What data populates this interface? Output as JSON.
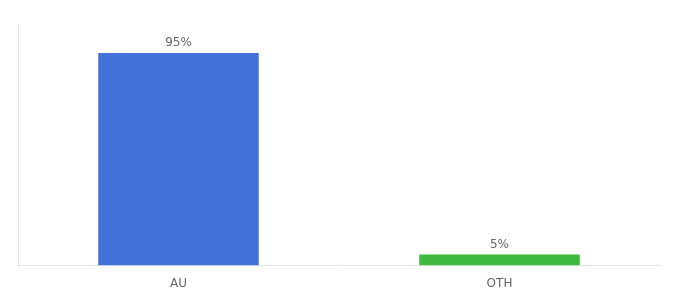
{
  "chart_data": {
    "type": "bar",
    "categories": [
      "AU",
      "OTH"
    ],
    "values": [
      95,
      5
    ],
    "value_labels": [
      "95%",
      "5%"
    ],
    "data_labels": true,
    "colors": [
      "#4472db",
      "#3dba3d"
    ],
    "ylim": [
      0,
      108
    ],
    "grid": false,
    "tick_labels": "x"
  }
}
